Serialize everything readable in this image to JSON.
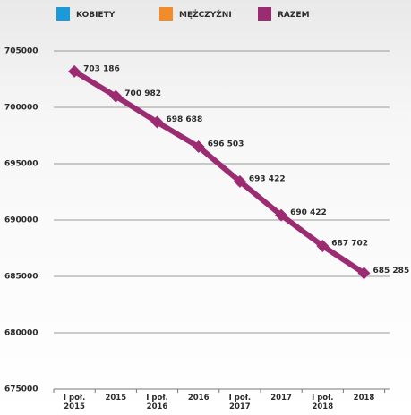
{
  "chart_data": {
    "type": "line",
    "categories": [
      "I poł. 2015",
      "2015",
      "I poł. 2016",
      "2016",
      "I poł. 2017",
      "2017",
      "I poł. 2018",
      "2018"
    ],
    "series": [
      {
        "name": "KOBIETY",
        "color": "#1a9ad6",
        "values": [
          null,
          null,
          null,
          null,
          null,
          null,
          null,
          null
        ]
      },
      {
        "name": "MĘŻCZYŹNI",
        "color": "#f28c28",
        "values": [
          null,
          null,
          null,
          null,
          null,
          null,
          null,
          null
        ]
      },
      {
        "name": "RAZEM",
        "color": "#9b2c72",
        "values": [
          703186,
          700982,
          698688,
          696503,
          693422,
          690422,
          687702,
          685285
        ],
        "value_labels": [
          "703 186",
          "700 982",
          "698 688",
          "696 503",
          "693 422",
          "690 422",
          "687 702",
          "685 285"
        ]
      }
    ],
    "ylim": [
      675000,
      705000
    ],
    "yticks": [
      675000,
      680000,
      685000,
      690000,
      695000,
      700000,
      705000
    ],
    "grid": true
  }
}
